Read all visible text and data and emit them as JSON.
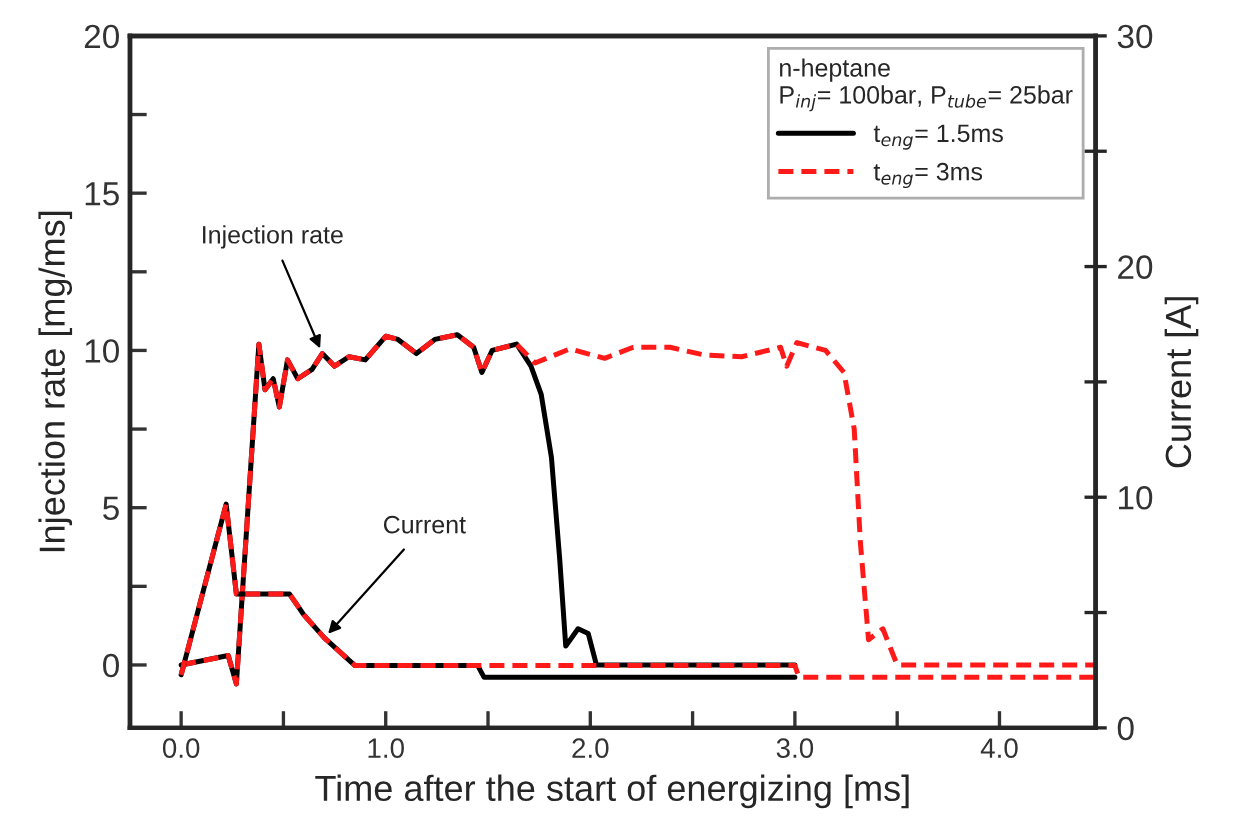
{
  "chart_data": {
    "type": "line",
    "xlabel": "Time after the start of energizing [ms]",
    "ylabel": "Injection rate [mg/ms]",
    "y2label": "Current [A]",
    "legend_title": "n-heptane\nP$_{inj}$= 100bar, P$_{tube}$= 25bar",
    "legend": "top right",
    "grid": false,
    "marker": "none",
    "xlim": [
      -0.25,
      4.47
    ],
    "xticks": [
      {
        "value": 0,
        "label": "0.0"
      },
      {
        "value": 0.5,
        "label": null
      },
      {
        "value": 1,
        "label": "1.0"
      },
      {
        "value": 1.5,
        "label": null
      },
      {
        "value": 2,
        "label": "2.0"
      },
      {
        "value": 2.5,
        "label": null
      },
      {
        "value": 3,
        "label": "3.0"
      },
      {
        "value": 3.5,
        "label": null
      },
      {
        "value": 4,
        "label": "4.0"
      }
    ],
    "ylim": [
      -2,
      20
    ],
    "yticks": [
      0,
      {
        "value": 2.5,
        "label": null
      },
      5,
      {
        "value": 7.5,
        "label": null
      },
      10,
      {
        "value": 12.5,
        "label": null
      },
      15,
      {
        "value": 17.5,
        "label": null
      },
      20
    ],
    "y2lim": [
      0,
      30
    ],
    "y2ticks": [
      0,
      {
        "value": 5,
        "label": null
      },
      10,
      {
        "value": 15,
        "label": null
      },
      20,
      {
        "value": 25,
        "label": null
      },
      30
    ],
    "series": [
      {
        "name": "t$_{eng}$= 1.5ms",
        "color": "#000000",
        "line_style": "solid",
        "x": [
          0,
          0.23,
          0.27,
          0.38,
          0.41,
          0.45,
          0.48,
          0.52,
          0.57,
          0.64,
          0.69,
          0.75,
          0.82,
          0.9,
          1.0,
          1.06,
          1.15,
          1.24,
          1.35,
          1.43,
          1.47,
          1.52,
          1.64,
          1.71,
          1.76,
          1.81,
          1.85,
          1.88,
          1.94,
          1.99,
          2.03,
          3.0
        ],
        "values": [
          0,
          0.3,
          -0.6,
          10.2,
          8.75,
          9.1,
          8.2,
          9.7,
          9.1,
          9.4,
          9.9,
          9.5,
          9.8,
          9.7,
          10.45,
          10.35,
          9.9,
          10.35,
          10.5,
          10.1,
          9.3,
          10.0,
          10.2,
          9.5,
          8.6,
          6.6,
          3.4,
          0.6,
          1.15,
          1.0,
          0,
          0
        ]
      },
      {
        "color": "#000000",
        "line_style": "solid",
        "axis": "y2",
        "x": [
          0,
          0.22,
          0.27,
          0.53,
          0.6,
          0.7,
          0.8,
          0.85,
          1.45,
          1.48,
          3.0
        ],
        "values": [
          2.3,
          9.7,
          5.8,
          5.8,
          4.9,
          3.9,
          3.1,
          2.7,
          2.7,
          2.2,
          2.2
        ]
      },
      {
        "name": "t$_{eng}$= 3ms",
        "color": "#ff1a1a",
        "line_style": "dashed",
        "x": [
          0,
          0.23,
          0.27,
          0.38,
          0.41,
          0.45,
          0.48,
          0.52,
          0.57,
          0.64,
          0.69,
          0.75,
          0.82,
          0.9,
          1.0,
          1.06,
          1.15,
          1.24,
          1.35,
          1.43,
          1.47,
          1.52,
          1.64,
          1.73,
          1.9,
          2.07,
          2.21,
          2.39,
          2.56,
          2.74,
          2.93,
          2.96,
          3.01,
          3.15,
          3.24,
          3.29,
          3.32,
          3.36,
          3.43,
          3.5,
          4.47
        ],
        "values": [
          0,
          0.3,
          -0.6,
          10.2,
          8.75,
          9.1,
          8.2,
          9.7,
          9.1,
          9.4,
          9.9,
          9.5,
          9.8,
          9.7,
          10.45,
          10.35,
          9.9,
          10.35,
          10.5,
          10.1,
          9.3,
          10.0,
          10.2,
          9.6,
          10.05,
          9.75,
          10.1,
          10.1,
          9.85,
          9.8,
          10.1,
          9.5,
          10.25,
          10.0,
          9.3,
          7.5,
          3.9,
          0.8,
          1.15,
          0,
          0
        ]
      },
      {
        "color": "#ff1a1a",
        "line_style": "dashed",
        "axis": "y2",
        "x": [
          0,
          0.22,
          0.27,
          0.53,
          0.6,
          0.7,
          0.8,
          0.85,
          3.0,
          3.02,
          4.47
        ],
        "values": [
          2.3,
          9.7,
          5.8,
          5.8,
          4.9,
          3.9,
          3.1,
          2.7,
          2.7,
          2.2,
          2.2
        ]
      }
    ],
    "annotations": [
      {
        "text": "Injection rate",
        "x": 0.69,
        "y": 9.9
      },
      {
        "text": "Current",
        "x": 0.7,
        "y": 0.86
      }
    ]
  }
}
